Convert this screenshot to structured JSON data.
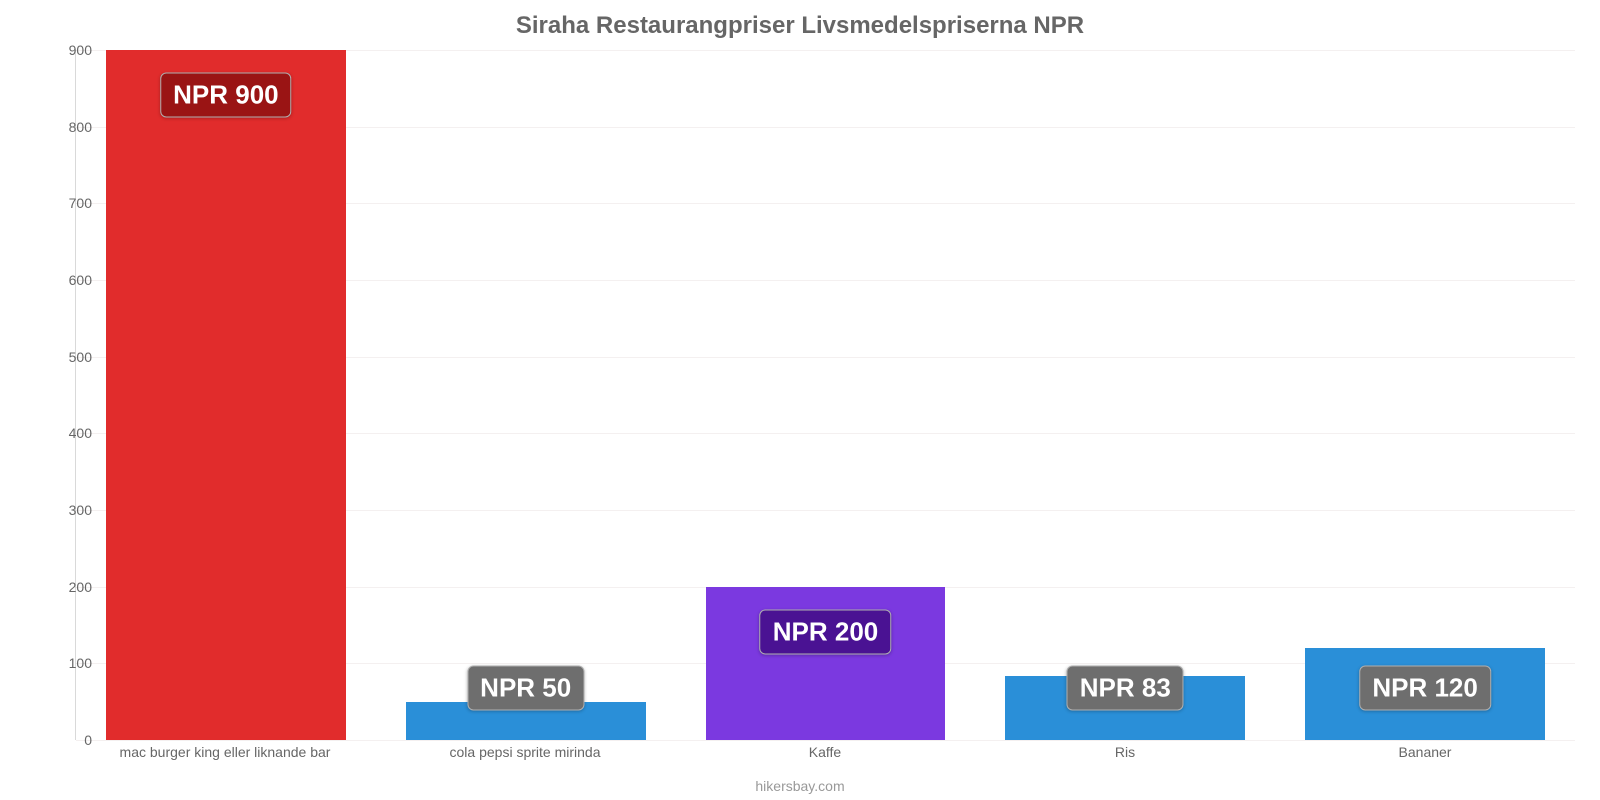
{
  "chart": {
    "type": "bar",
    "title": "Siraha Restaurangpriser Livsmedelspriserna NPR",
    "title_fontsize": 24,
    "title_color": "#666666",
    "background_color": "#ffffff",
    "grid_color": "#f4f0f0",
    "axis_color": "#d9d9d9",
    "tick_font_color": "#666666",
    "tick_fontsize": 14,
    "value_label_fontsize": 26,
    "value_label_text_color": "#ffffff",
    "value_label_border_color": "#b0b0b0",
    "ylim": [
      0,
      900
    ],
    "ytick_step": 100,
    "yticks": [
      0,
      100,
      200,
      300,
      400,
      500,
      600,
      700,
      800,
      900
    ],
    "bar_width": 0.8,
    "categories": [
      "mac burger king eller liknande bar",
      "cola pepsi sprite mirinda",
      "Kaffe",
      "Ris",
      "Bananer"
    ],
    "values": [
      900,
      50,
      200,
      83,
      120
    ],
    "value_labels": [
      "NPR 900",
      "NPR 50",
      "NPR 200",
      "NPR 83",
      "NPR 120"
    ],
    "bar_colors": [
      "#e12c2c",
      "#2a8fd8",
      "#7b39e0",
      "#2a8fd8",
      "#2a8fd8"
    ],
    "label_bg_colors": [
      "#9a1414",
      "#6e6e6e",
      "#4a1293",
      "#6e6e6e",
      "#6e6e6e"
    ],
    "footer": "hikersbay.com",
    "footer_color": "#999999"
  }
}
